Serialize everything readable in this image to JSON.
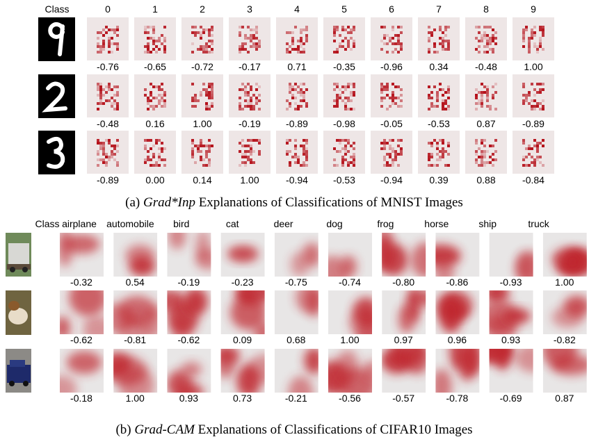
{
  "panel_a": {
    "header": "Class",
    "columns": [
      "0",
      "1",
      "2",
      "3",
      "4",
      "5",
      "6",
      "7",
      "8",
      "9"
    ],
    "rows": [
      [
        "-0.76",
        "-0.65",
        "-0.72",
        "-0.17",
        "0.71",
        "-0.35",
        "-0.96",
        "0.34",
        "-0.48",
        "1.00"
      ],
      [
        "-0.48",
        "0.16",
        "1.00",
        "-0.19",
        "-0.89",
        "-0.98",
        "-0.05",
        "-0.53",
        "0.87",
        "-0.89"
      ],
      [
        "-0.89",
        "0.00",
        "0.14",
        "1.00",
        "-0.94",
        "-0.53",
        "-0.94",
        "0.39",
        "0.88",
        "-0.84"
      ]
    ],
    "caption": {
      "label": "(a)",
      "method": "Grad*Inp",
      "text": "Explanations of Classifications of MNIST Images"
    }
  },
  "panel_b": {
    "header": "Class",
    "columns": [
      "airplane",
      "automobile",
      "bird",
      "cat",
      "deer",
      "dog",
      "frog",
      "horse",
      "ship",
      "truck"
    ],
    "rows": [
      [
        "-0.32",
        "0.54",
        "-0.19",
        "-0.23",
        "-0.75",
        "-0.74",
        "-0.80",
        "-0.86",
        "-0.93",
        "1.00"
      ],
      [
        "-0.62",
        "-0.81",
        "-0.62",
        "0.09",
        "0.68",
        "1.00",
        "0.97",
        "0.96",
        "0.93",
        "-0.82"
      ],
      [
        "-0.18",
        "1.00",
        "0.93",
        "0.73",
        "-0.21",
        "-0.56",
        "-0.57",
        "-0.78",
        "-0.69",
        "0.87"
      ]
    ],
    "caption": {
      "label": "(b)",
      "method": "Grad-CAM",
      "text": "Explanations of Classifications of CIFAR10 Images"
    }
  }
}
